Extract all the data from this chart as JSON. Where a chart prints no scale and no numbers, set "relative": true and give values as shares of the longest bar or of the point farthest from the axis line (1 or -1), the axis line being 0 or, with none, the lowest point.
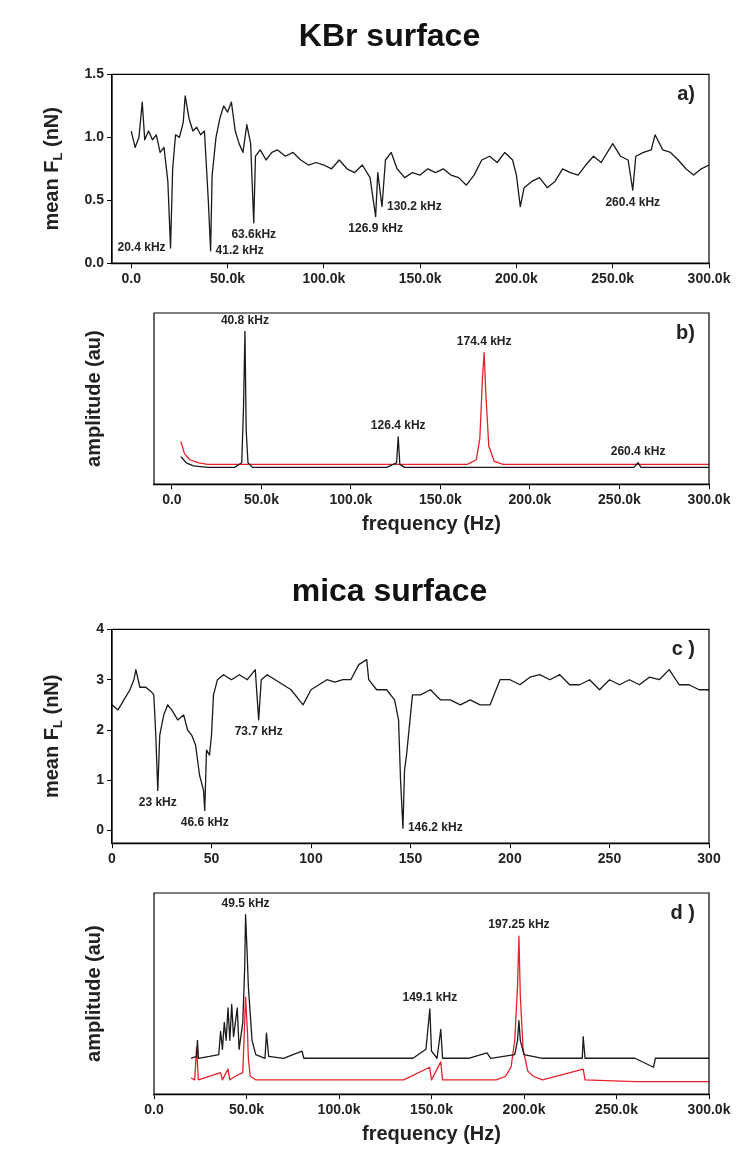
{
  "chart_data": [
    {
      "type": "line",
      "title": "KBr surface",
      "ylabel": "mean F$_{L}$ (nN)",
      "x": [
        0,
        2000,
        4000,
        5700,
        7000,
        9000,
        11000,
        13000,
        15000,
        17000,
        19000,
        20400,
        21500,
        23000,
        25000,
        27000,
        28000,
        30000,
        32000,
        34000,
        36000,
        38000,
        40000,
        41200,
        42000,
        44000,
        46000,
        48000,
        50000,
        52000,
        54000,
        56000,
        58000,
        60000,
        62000,
        63600,
        64500,
        67000,
        70000,
        73000,
        76000,
        80000,
        84000,
        88000,
        92000,
        96000,
        100000,
        104000,
        108000,
        112000,
        116000,
        120000,
        124000,
        126900,
        128000,
        130200,
        132000,
        135000,
        138000,
        142000,
        146000,
        150000,
        154000,
        158000,
        162000,
        166000,
        170000,
        174000,
        178000,
        182000,
        186000,
        190000,
        194000,
        198000,
        200000,
        202000,
        204000,
        208000,
        212000,
        216000,
        220000,
        224000,
        228000,
        232000,
        236000,
        240000,
        244000,
        248000,
        250000,
        254000,
        258000,
        260400,
        262000,
        266000,
        270000,
        272000,
        276000,
        280000,
        284000,
        288000,
        292000,
        296000,
        300000
      ],
      "series": [
        {
          "color": "#1a1a1a",
          "values": [
            1.05,
            0.92,
            1.0,
            1.28,
            0.98,
            1.05,
            0.98,
            1.02,
            0.88,
            0.92,
            0.65,
            0.12,
            0.75,
            1.02,
            1.0,
            1.12,
            1.33,
            1.15,
            1.05,
            1.08,
            1.02,
            1.05,
            0.5,
            0.1,
            0.7,
            1.0,
            1.15,
            1.25,
            1.2,
            1.28,
            1.05,
            0.95,
            0.88,
            1.1,
            0.95,
            0.32,
            0.85,
            0.9,
            0.82,
            0.88,
            0.9,
            0.85,
            0.88,
            0.82,
            0.78,
            0.8,
            0.78,
            0.75,
            0.82,
            0.75,
            0.72,
            0.78,
            0.68,
            0.37,
            0.72,
            0.45,
            0.82,
            0.88,
            0.75,
            0.68,
            0.72,
            0.7,
            0.75,
            0.72,
            0.75,
            0.7,
            0.68,
            0.62,
            0.7,
            0.82,
            0.85,
            0.8,
            0.88,
            0.82,
            0.7,
            0.45,
            0.6,
            0.65,
            0.68,
            0.6,
            0.65,
            0.75,
            0.72,
            0.7,
            0.78,
            0.85,
            0.8,
            0.9,
            0.95,
            0.85,
            0.82,
            0.58,
            0.85,
            0.88,
            0.9,
            1.02,
            0.9,
            0.88,
            0.82,
            0.75,
            0.7,
            0.75,
            0.78
          ]
        }
      ],
      "xlim": [
        -10000,
        300000
      ],
      "ylim": [
        0,
        1.5
      ],
      "xticks": [
        {
          "value": 0,
          "label": "0.0"
        },
        {
          "value": 50000,
          "label": "50.0k"
        },
        {
          "value": 100000,
          "label": "100.0k"
        },
        {
          "value": 150000,
          "label": "150.0k"
        },
        {
          "value": 200000,
          "label": "200.0k"
        },
        {
          "value": 250000,
          "label": "250.0k"
        },
        {
          "value": 300000,
          "label": "300.0k"
        }
      ],
      "yticks": [
        {
          "value": 0,
          "label": "0.0"
        },
        {
          "value": 0.5,
          "label": "0.5"
        },
        {
          "value": 1,
          "label": "1.0"
        },
        {
          "value": 1.5,
          "label": "1.5"
        }
      ],
      "annotations": [
        "a)",
        {
          "text": "20.4 kHz",
          "x": 20400,
          "y": 0.12
        },
        {
          "text": "41.2 kHz",
          "x": 41200,
          "y": 0.1
        },
        {
          "text": "63.6kHz",
          "x": 63600,
          "y": 0.32
        },
        {
          "text": "126.9 kHz",
          "x": 126900,
          "y": 0.37
        },
        {
          "text": "130.2 kHz",
          "x": 130200,
          "y": 0.45
        },
        {
          "text": "260.4 kHz",
          "x": 260400,
          "y": 0.58
        }
      ],
      "grid": false,
      "marker": "none"
    },
    {
      "type": "line",
      "xlabel": "frequency (Hz)",
      "ylabel": "amplitude (au)",
      "relative": true,
      "series": [
        {
          "color": "#1a1a1a",
          "x": [
            5000,
            8000,
            12000,
            20000,
            35000,
            39000,
            40000,
            40800,
            41500,
            42500,
            45000,
            80000,
            120000,
            125500,
            126400,
            127300,
            130000,
            170000,
            200000,
            258000,
            260400,
            262000,
            300000
          ],
          "values": [
            0.18,
            0.14,
            0.12,
            0.11,
            0.11,
            0.14,
            0.5,
            1.0,
            0.35,
            0.14,
            0.11,
            0.11,
            0.11,
            0.14,
            0.31,
            0.13,
            0.11,
            0.11,
            0.11,
            0.11,
            0.14,
            0.11,
            0.11
          ]
        },
        {
          "color": "#e8202a",
          "x": [
            5000,
            7000,
            10000,
            15000,
            20000,
            30000,
            40000,
            60000,
            120000,
            165000,
            170000,
            172000,
            173500,
            174400,
            175300,
            177000,
            180000,
            185000,
            200000,
            300000
          ],
          "values": [
            0.28,
            0.2,
            0.16,
            0.14,
            0.13,
            0.13,
            0.13,
            0.13,
            0.13,
            0.13,
            0.16,
            0.3,
            0.7,
            0.86,
            0.6,
            0.25,
            0.15,
            0.13,
            0.13,
            0.13
          ]
        }
      ],
      "xlim": [
        -10000,
        300000
      ],
      "xticks": [
        {
          "value": 0,
          "label": "0.0"
        },
        {
          "value": 50000,
          "label": "50.0k"
        },
        {
          "value": 100000,
          "label": "100.0k"
        },
        {
          "value": 150000,
          "label": "150.0k"
        },
        {
          "value": 200000,
          "label": "200.0k"
        },
        {
          "value": 250000,
          "label": "250.0k"
        },
        {
          "value": 300000,
          "label": "300.0k"
        }
      ],
      "annotations": [
        "b)",
        {
          "text": "40.8 kHz",
          "x": 40800,
          "y": 1.0
        },
        {
          "text": "126.4 kHz",
          "x": 126400,
          "y": 0.31
        },
        {
          "text": "174.4 kHz",
          "x": 174400,
          "y": 0.86
        },
        {
          "text": "260.4 kHz",
          "x": 260400,
          "y": 0.14
        }
      ],
      "grid": false,
      "marker": "none"
    },
    {
      "type": "line",
      "title": "mica surface",
      "ylabel": "mean F$_{L}$ (nN)",
      "x": [
        0,
        3,
        6,
        9,
        11,
        12,
        14,
        17,
        20,
        21,
        22,
        23,
        24,
        26,
        28,
        30,
        33,
        36,
        38,
        40,
        42,
        44,
        46,
        46.6,
        47.5,
        49,
        50,
        51,
        53,
        56,
        60,
        64,
        68,
        72,
        73.7,
        75,
        78,
        82,
        86,
        90,
        94,
        96,
        100,
        104,
        108,
        112,
        116,
        120,
        124,
        128,
        129,
        133,
        138,
        142,
        144,
        145,
        146.2,
        147,
        148,
        150,
        151,
        155,
        160,
        165,
        170,
        175,
        180,
        185,
        190,
        195,
        200,
        205,
        210,
        215,
        220,
        225,
        230,
        235,
        240,
        245,
        250,
        255,
        260,
        265,
        270,
        275,
        280,
        285,
        290,
        295,
        300
      ],
      "series": [
        {
          "color": "#1a1a1a",
          "values": [
            2.5,
            2.4,
            2.6,
            2.8,
            3.0,
            3.2,
            2.85,
            2.85,
            2.75,
            2.7,
            1.9,
            0.8,
            1.9,
            2.3,
            2.5,
            2.4,
            2.2,
            2.3,
            2.0,
            1.9,
            1.7,
            1.1,
            0.8,
            0.4,
            1.6,
            1.5,
            1.9,
            2.7,
            3.0,
            3.1,
            3.0,
            3.1,
            3.0,
            3.2,
            2.2,
            3.0,
            3.1,
            3.0,
            2.9,
            2.8,
            2.6,
            2.5,
            2.8,
            2.9,
            3.0,
            2.95,
            3.0,
            3.0,
            3.3,
            3.4,
            3.0,
            2.8,
            2.8,
            2.6,
            2.2,
            1.0,
            0.05,
            1.2,
            1.5,
            2.3,
            2.7,
            2.7,
            2.8,
            2.6,
            2.6,
            2.5,
            2.6,
            2.5,
            2.5,
            3.0,
            3.0,
            2.9,
            3.05,
            3.1,
            3.0,
            3.1,
            2.9,
            2.9,
            3.0,
            2.8,
            3.0,
            2.9,
            3.0,
            2.9,
            3.05,
            3.0,
            3.2,
            2.9,
            2.9,
            2.8,
            2.8
          ]
        }
      ],
      "xlim": [
        0,
        300
      ],
      "ylim": [
        -0.25,
        4
      ],
      "xticks": [
        0,
        50,
        100,
        150,
        200,
        250,
        300
      ],
      "yticks": [
        0,
        1,
        2,
        3,
        4
      ],
      "annotations": [
        "c )",
        {
          "text": "23 kHz",
          "x": 23,
          "y": 0.8
        },
        {
          "text": "46.6 kHz",
          "x": 46.6,
          "y": 0.4
        },
        {
          "text": "73.7 kHz",
          "x": 73.7,
          "y": 2.2
        },
        {
          "text": "146.2 kHz",
          "x": 146.2,
          "y": 0.05
        }
      ],
      "grid": false,
      "marker": "none"
    },
    {
      "type": "line",
      "xlabel": "frequency (Hz)",
      "ylabel": "amplitude (au)",
      "relative": true,
      "series": [
        {
          "color": "#1a1a1a",
          "x": [
            20000,
            23000,
            23500,
            24000,
            30000,
            35000,
            36000,
            37000,
            38000,
            39000,
            40000,
            41000,
            42000,
            43000,
            45000,
            46000,
            48000,
            49000,
            49500,
            50300,
            51000,
            52000,
            53000,
            55000,
            60000,
            60800,
            62000,
            70000,
            80000,
            81000,
            100000,
            120000,
            140000,
            147000,
            149100,
            150000,
            153000,
            155000,
            156000,
            170000,
            180000,
            182000,
            195000,
            196500,
            197250,
            198000,
            200000,
            210000,
            231500,
            232000,
            233000,
            260000,
            270000,
            271000,
            300000
          ],
          "values": [
            0.2,
            0.21,
            0.3,
            0.2,
            0.21,
            0.22,
            0.35,
            0.25,
            0.4,
            0.3,
            0.48,
            0.3,
            0.5,
            0.32,
            0.48,
            0.25,
            0.4,
            0.7,
            1.0,
            0.8,
            0.6,
            0.45,
            0.3,
            0.22,
            0.2,
            0.34,
            0.21,
            0.2,
            0.24,
            0.2,
            0.2,
            0.2,
            0.2,
            0.25,
            0.475,
            0.24,
            0.2,
            0.36,
            0.2,
            0.2,
            0.23,
            0.2,
            0.22,
            0.3,
            0.41,
            0.3,
            0.22,
            0.2,
            0.2,
            0.32,
            0.2,
            0.2,
            0.15,
            0.2,
            0.2
          ]
        },
        {
          "color": "#e8202a",
          "x": [
            20000,
            22000,
            23000,
            24000,
            36000,
            37000,
            40000,
            41000,
            44000,
            48000,
            49000,
            49500,
            50500,
            51000,
            52000,
            55000,
            80000,
            120000,
            135000,
            149000,
            150000,
            155000,
            156000,
            185000,
            190000,
            193000,
            195000,
            196500,
            197250,
            198000,
            199500,
            202000,
            205000,
            210000,
            232000,
            233000,
            260000,
            300000
          ],
          "values": [
            0.09,
            0.08,
            0.26,
            0.08,
            0.12,
            0.08,
            0.14,
            0.08,
            0.1,
            0.12,
            0.4,
            0.54,
            0.35,
            0.2,
            0.1,
            0.08,
            0.08,
            0.08,
            0.08,
            0.15,
            0.08,
            0.18,
            0.08,
            0.08,
            0.1,
            0.15,
            0.3,
            0.6,
            0.88,
            0.55,
            0.25,
            0.13,
            0.1,
            0.08,
            0.14,
            0.08,
            0.07,
            0.07
          ]
        }
      ],
      "xlim": [
        0,
        300000
      ],
      "xticks": [
        {
          "value": 0,
          "label": "0.0"
        },
        {
          "value": 50000,
          "label": "50.0k"
        },
        {
          "value": 100000,
          "label": "100.0k"
        },
        {
          "value": 150000,
          "label": "150.0k"
        },
        {
          "value": 200000,
          "label": "200.0k"
        },
        {
          "value": 250000,
          "label": "250.0k"
        },
        {
          "value": 300000,
          "label": "300.0k"
        }
      ],
      "annotations": [
        "d )",
        {
          "text": "49.5 kHz",
          "x": 49500,
          "y": 1.0
        },
        {
          "text": "149.1 kHz",
          "x": 149100,
          "y": 0.475
        },
        {
          "text": "197.25 kHz",
          "x": 197250,
          "y": 0.88
        }
      ],
      "grid": false,
      "marker": "none"
    }
  ]
}
